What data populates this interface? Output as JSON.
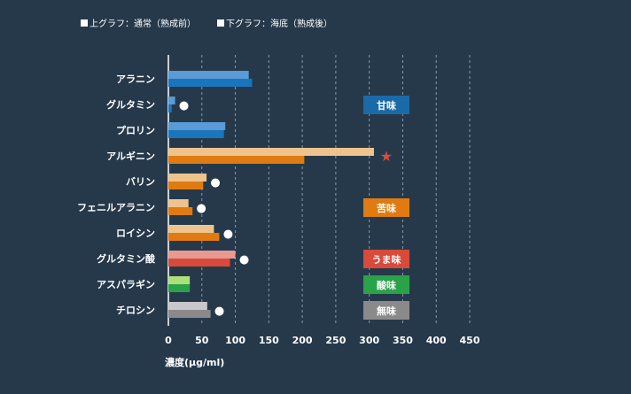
{
  "chart_data": {
    "type": "bar",
    "categories": [
      "アラニン",
      "グルタミン",
      "プロリン",
      "アルギニン",
      "バリン",
      "フェニルアラニン",
      "ロイシン",
      "グルタミン酸",
      "アスパラギン",
      "チロシン"
    ],
    "series": [
      {
        "name": "上グラフ：通常（熟成前）",
        "values": [
          120,
          10,
          85,
          307,
          57,
          30,
          68,
          100,
          32,
          58
        ]
      },
      {
        "name": "下グラフ：海底（熟成後）",
        "values": [
          125,
          5,
          83,
          203,
          52,
          36,
          76,
          92,
          32,
          63
        ]
      }
    ],
    "series_colors": [
      [
        "#5a9ad6",
        "#5a9ad6",
        "#5a9ad6",
        "#eec48c",
        "#eec48c",
        "#eec48c",
        "#eec48c",
        "#e89a90",
        "#aee07a",
        "#c8c8c8"
      ],
      [
        "#1b75bc",
        "#1b75bc",
        "#1b75bc",
        "#e07b12",
        "#e07b12",
        "#e07b12",
        "#e07b12",
        "#d84a3a",
        "#2aa24a",
        "#8a8a8a"
      ]
    ],
    "markers": [
      {
        "category": "グルタミン",
        "symbol": "●"
      },
      {
        "category": "アルギニン",
        "symbol": "★"
      },
      {
        "category": "バリン",
        "symbol": "●"
      },
      {
        "category": "フェニルアラニン",
        "symbol": "●"
      },
      {
        "category": "ロイシン",
        "symbol": "●"
      },
      {
        "category": "グルタミン酸",
        "symbol": "●"
      },
      {
        "category": "チロシン",
        "symbol": "●"
      }
    ],
    "taste_tags": [
      {
        "label": "甘味",
        "color": "#1b6aa8",
        "category": "グルタミン"
      },
      {
        "label": "苦味",
        "color": "#e07b12",
        "category": "フェニルアラニン"
      },
      {
        "label": "うま味",
        "color": "#d84a3a",
        "category": "グルタミン酸"
      },
      {
        "label": "酸味",
        "color": "#2aa24a",
        "category": "アスパラギン"
      },
      {
        "label": "無味",
        "color": "#8a8a8a",
        "category": "チロシン"
      }
    ],
    "x_ticks": [
      0,
      50,
      100,
      150,
      200,
      250,
      300,
      350,
      400,
      450
    ],
    "xlim": [
      0,
      450
    ],
    "xlabel": "濃度(μg/ml)",
    "grid": true,
    "legend_position": "top-left"
  },
  "colors": {
    "background": "#26394b",
    "grid": "#8a97a3",
    "text": "#ffffff",
    "marker_dot": "#ffffff",
    "marker_star": "#d84a3a"
  }
}
